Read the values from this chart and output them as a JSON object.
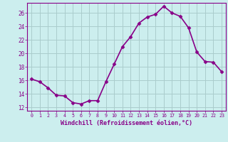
{
  "x": [
    0,
    1,
    2,
    3,
    4,
    5,
    6,
    7,
    8,
    9,
    10,
    11,
    12,
    13,
    14,
    15,
    16,
    17,
    18,
    19,
    20,
    21,
    22,
    23
  ],
  "y": [
    16.2,
    15.8,
    14.9,
    13.8,
    13.7,
    12.7,
    12.5,
    13.0,
    13.0,
    15.8,
    18.4,
    21.0,
    22.5,
    24.5,
    25.4,
    25.8,
    27.0,
    26.0,
    25.5,
    23.8,
    20.2,
    18.8,
    18.7,
    17.3
  ],
  "line_color": "#880088",
  "marker": "D",
  "marker_size": 2.5,
  "bg_color": "#cceeee",
  "grid_color": "#aacccc",
  "xlabel": "Windchill (Refroidissement éolien,°C)",
  "ylim": [
    11.5,
    27.5
  ],
  "xlim": [
    -0.5,
    23.5
  ],
  "yticks": [
    12,
    14,
    16,
    18,
    20,
    22,
    24,
    26
  ],
  "xticks": [
    0,
    1,
    2,
    3,
    4,
    5,
    6,
    7,
    8,
    9,
    10,
    11,
    12,
    13,
    14,
    15,
    16,
    17,
    18,
    19,
    20,
    21,
    22,
    23
  ],
  "tick_color": "#880088",
  "label_color": "#880088",
  "line_width": 1.2
}
